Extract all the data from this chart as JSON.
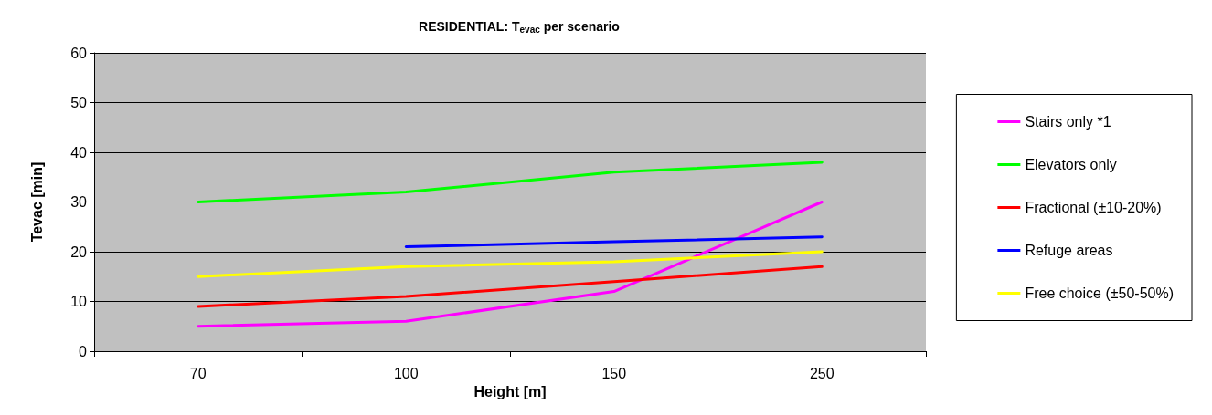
{
  "chart_data": {
    "type": "line",
    "title": "RESIDENTIAL: T$_{evac}$ per scenario",
    "xlabel": "Height [m]",
    "ylabel": "Tevac [min]",
    "categories": [
      "70",
      "100",
      "150",
      "250"
    ],
    "series": [
      {
        "name": "Stairs only *1",
        "color": "#ff00ff",
        "values": [
          5,
          6,
          12,
          30
        ]
      },
      {
        "name": "Elevators only",
        "color": "#00ff00",
        "values": [
          30,
          32,
          36,
          38
        ]
      },
      {
        "name": "Fractional (±10-20%)",
        "color": "#ff0000",
        "values": [
          9,
          11,
          14,
          17
        ]
      },
      {
        "name": "Refuge areas",
        "color": "#0000ff",
        "values": [
          null,
          21,
          22,
          23
        ]
      },
      {
        "name": "Free choice (±50-50%)",
        "color": "#ffff00",
        "values": [
          15,
          17,
          18,
          20
        ]
      }
    ],
    "ylim": [
      0,
      60
    ],
    "yticks": [
      0,
      10,
      20,
      30,
      40,
      50,
      60
    ],
    "grid": "y",
    "legend": "right",
    "marker": "none",
    "line_style": "solid"
  }
}
